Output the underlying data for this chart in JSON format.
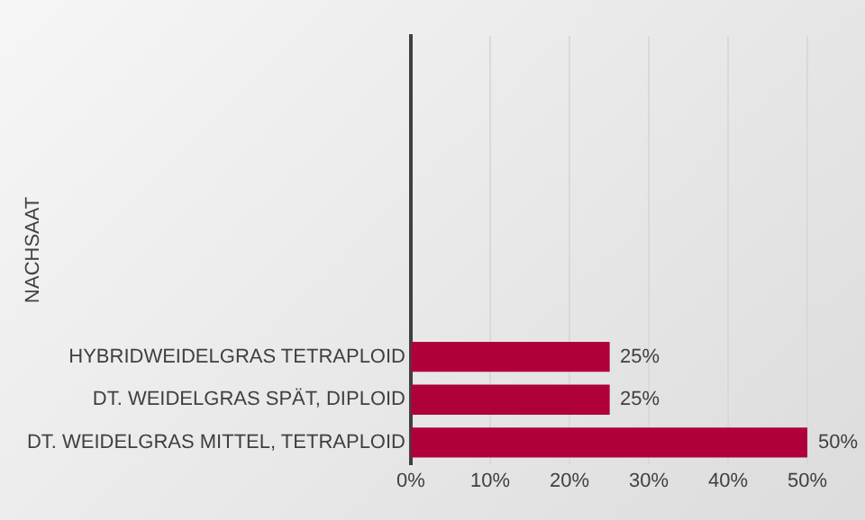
{
  "chart_data": {
    "type": "bar",
    "orientation": "horizontal",
    "ylabel": "NACHSAAT",
    "categories": [
      "HYBRIDWEIDELGRAS TETRAPLOID",
      "DT. WEIDELGRAS SPÄT, DIPLOID",
      "DT. WEIDELGRAS MITTEL, TETRAPLOID"
    ],
    "values": [
      25,
      25,
      50
    ],
    "color": "#b0003a",
    "value_labels": [
      "25%",
      "25%",
      "50%"
    ],
    "xlim": [
      0,
      50
    ],
    "xticks": [
      {
        "value": 0,
        "label": "0%"
      },
      {
        "value": 10,
        "label": "10%"
      },
      {
        "value": 20,
        "label": "20%"
      },
      {
        "value": 30,
        "label": "30%"
      },
      {
        "value": 40,
        "label": "40%"
      },
      {
        "value": 50,
        "label": "50%"
      }
    ],
    "grid": "x",
    "legend": false
  }
}
